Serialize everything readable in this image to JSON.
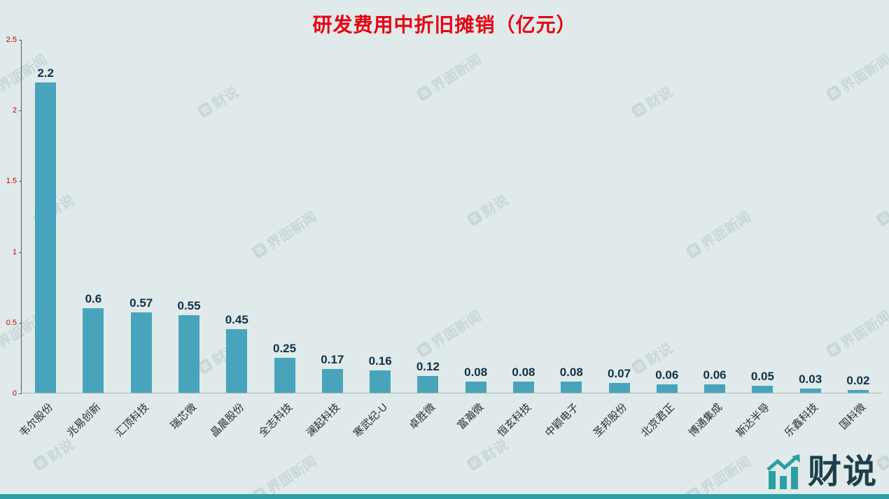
{
  "title": "研发费用中折旧摊销（亿元）",
  "chart_data": {
    "type": "bar",
    "title": "研发费用中折旧摊销（亿元）",
    "categories": [
      "韦尔股份",
      "兆易创新",
      "汇顶科技",
      "瑞芯微",
      "晶晨股份",
      "全志科技",
      "澜起科技",
      "寒武纪-U",
      "卓胜微",
      "富瀚微",
      "恒玄科技",
      "中颖电子",
      "圣邦股份",
      "北京君正",
      "博通集成",
      "斯达半导",
      "乐鑫科技",
      "国科微"
    ],
    "values": [
      2.2,
      0.6,
      0.57,
      0.55,
      0.45,
      0.25,
      0.17,
      0.16,
      0.12,
      0.08,
      0.08,
      0.08,
      0.07,
      0.06,
      0.06,
      0.05,
      0.03,
      0.02
    ],
    "value_labels": [
      "2.2",
      "0.6",
      "0.57",
      "0.55",
      "0.45",
      "0.25",
      "0.17",
      "0.16",
      "0.12",
      "0.08",
      "0.08",
      "0.08",
      "0.07",
      "0.06",
      "0.06",
      "0.05",
      "0.03",
      "0.02"
    ],
    "xlabel": "",
    "ylabel": "",
    "ylim": [
      0,
      2.5
    ],
    "yticks": [
      "0",
      "0.5",
      "1",
      "1.5",
      "2",
      "2.5"
    ],
    "grid": false,
    "legend_position": "none",
    "bar_color": "#48a4ba",
    "title_color": "#e60012",
    "value_label_color": "#12304a",
    "ytick_color": "#c00000"
  },
  "watermark": {
    "jiemian_label": "界面新闻",
    "jiemian_icon_glyph": "面",
    "caishuo_label": "财说",
    "caishuo_icon_glyph": "说"
  },
  "logo": {
    "text": "财说"
  },
  "colors": {
    "background": "#e0eaea",
    "footer_strip": "#2f9da6",
    "logo_text": "#1c3f4b",
    "logo_icon": "#2ba0a3"
  }
}
